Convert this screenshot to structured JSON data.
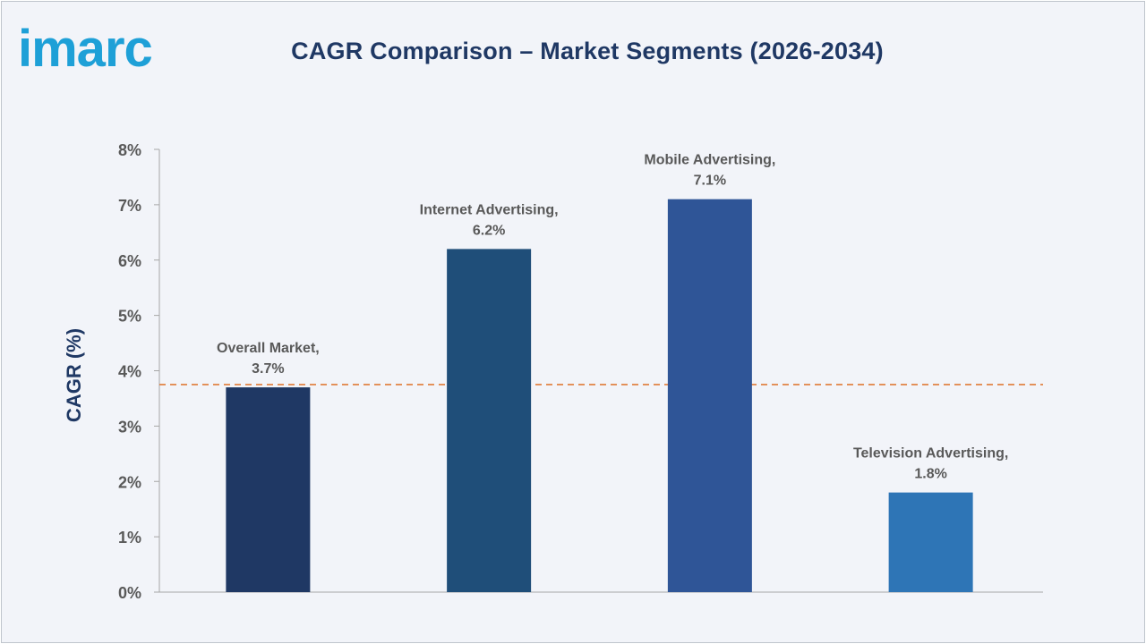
{
  "brand": {
    "logo_text": "imarc",
    "logo_color": "#1ea0d7"
  },
  "chart_data": {
    "type": "bar",
    "title": "CAGR Comparison – Market Segments (2026-2034)",
    "ylabel": "CAGR (%)",
    "xlabel": "",
    "ylim": [
      0,
      8
    ],
    "yticks": [
      "0%",
      "1%",
      "2%",
      "3%",
      "4%",
      "5%",
      "6%",
      "7%",
      "8%"
    ],
    "categories": [
      "Overall Market",
      "Internet Advertising",
      "Mobile Advertising",
      "Television Advertising"
    ],
    "values": [
      3.7,
      6.2,
      7.1,
      1.8
    ],
    "data_labels": [
      {
        "line1": "Overall Market,",
        "line2": "3.7%"
      },
      {
        "line1": "Internet Advertising,",
        "line2": "6.2%"
      },
      {
        "line1": "Mobile Advertising,",
        "line2": "7.1%"
      },
      {
        "line1": "Television Advertising,",
        "line2": "1.8%"
      }
    ],
    "colors": [
      "#1f3864",
      "#1f4e79",
      "#2f5597",
      "#2e75b6"
    ],
    "reference_line": {
      "value": 3.75,
      "style": "dashed",
      "color": "#e07b39"
    },
    "grid": false,
    "legend": "none"
  }
}
